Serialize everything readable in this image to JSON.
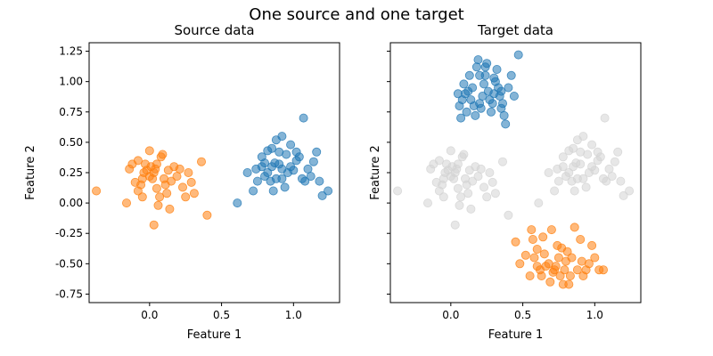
{
  "suptitle": "One source and one target",
  "colors": {
    "source_a": "#1f77b4",
    "source_b": "#ff7f0e",
    "target_ghost": "#d3d3d3"
  },
  "chart_data": [
    {
      "type": "scatter",
      "title": "Source data",
      "xlabel": "Feature 1",
      "ylabel": "Feature 2",
      "xlim": [
        -0.42,
        1.32
      ],
      "ylim": [
        -0.82,
        1.32
      ],
      "xticks": [
        "0.0",
        "0.5",
        "1.0"
      ],
      "yticks": [
        "-0.75",
        "-0.50",
        "-0.25",
        "0.00",
        "0.25",
        "0.50",
        "0.75",
        "1.00",
        "1.25"
      ],
      "grid": false,
      "series": [
        {
          "color": "#1f77b4",
          "points": [
            [
              0.61,
              0.0
            ],
            [
              0.72,
              0.1
            ],
            [
              0.75,
              0.18
            ],
            [
              0.68,
              0.25
            ],
            [
              0.74,
              0.28
            ],
            [
              0.78,
              0.3
            ],
            [
              0.8,
              0.22
            ],
            [
              0.82,
              0.25
            ],
            [
              0.84,
              0.18
            ],
            [
              0.86,
              0.1
            ],
            [
              0.88,
              0.2
            ],
            [
              0.85,
              0.3
            ],
            [
              0.87,
              0.33
            ],
            [
              0.9,
              0.32
            ],
            [
              0.92,
              0.2
            ],
            [
              0.94,
              0.13
            ],
            [
              0.96,
              0.25
            ],
            [
              0.98,
              0.3
            ],
            [
              1.0,
              0.27
            ],
            [
              1.02,
              0.35
            ],
            [
              1.04,
              0.38
            ],
            [
              1.06,
              0.2
            ],
            [
              1.08,
              0.18
            ],
            [
              1.1,
              0.28
            ],
            [
              1.12,
              0.22
            ],
            [
              1.14,
              0.34
            ],
            [
              1.16,
              0.42
            ],
            [
              1.18,
              0.18
            ],
            [
              1.2,
              0.06
            ],
            [
              1.24,
              0.1
            ],
            [
              0.78,
              0.38
            ],
            [
              0.82,
              0.43
            ],
            [
              0.85,
              0.45
            ],
            [
              0.9,
              0.42
            ],
            [
              0.95,
              0.4
            ],
            [
              0.88,
              0.52
            ],
            [
              0.92,
              0.55
            ],
            [
              0.98,
              0.48
            ],
            [
              1.02,
              0.42
            ],
            [
              1.07,
              0.7
            ],
            [
              0.8,
              0.33
            ],
            [
              0.92,
              0.28
            ]
          ]
        },
        {
          "color": "#ff7f0e",
          "points": [
            [
              -0.37,
              0.1
            ],
            [
              -0.16,
              0.0
            ],
            [
              -0.14,
              0.28
            ],
            [
              -0.12,
              0.32
            ],
            [
              -0.1,
              0.17
            ],
            [
              -0.08,
              0.1
            ],
            [
              -0.06,
              0.15
            ],
            [
              -0.05,
              0.05
            ],
            [
              -0.04,
              0.25
            ],
            [
              -0.03,
              0.32
            ],
            [
              -0.02,
              0.27
            ],
            [
              0.0,
              0.43
            ],
            [
              0.01,
              0.3
            ],
            [
              0.02,
              0.2
            ],
            [
              0.03,
              0.25
            ],
            [
              0.04,
              0.28
            ],
            [
              0.05,
              0.12
            ],
            [
              0.06,
              -0.02
            ],
            [
              0.07,
              0.05
            ],
            [
              0.08,
              0.38
            ],
            [
              0.09,
              0.4
            ],
            [
              0.1,
              0.2
            ],
            [
              0.11,
              0.15
            ],
            [
              0.12,
              0.08
            ],
            [
              0.13,
              0.27
            ],
            [
              0.14,
              -0.05
            ],
            [
              0.15,
              0.18
            ],
            [
              0.17,
              0.3
            ],
            [
              0.19,
              0.22
            ],
            [
              0.21,
              0.28
            ],
            [
              0.23,
              0.13
            ],
            [
              0.25,
              0.05
            ],
            [
              0.27,
              0.25
            ],
            [
              0.29,
              0.17
            ],
            [
              0.31,
              0.08
            ],
            [
              0.36,
              0.34
            ],
            [
              0.4,
              -0.1
            ],
            [
              -0.05,
              0.2
            ],
            [
              0.03,
              -0.18
            ],
            [
              0.05,
              0.32
            ],
            [
              -0.08,
              0.35
            ],
            [
              0.0,
              0.22
            ]
          ]
        }
      ]
    },
    {
      "type": "scatter",
      "title": "Target data",
      "xlabel": "Feature 1",
      "ylabel": "Feature 2",
      "xlim": [
        -0.42,
        1.32
      ],
      "ylim": [
        -0.82,
        1.32
      ],
      "xticks": [
        "0.0",
        "0.5",
        "1.0"
      ],
      "grid": false,
      "series": [
        {
          "color": "#d3d3d3",
          "points": [
            [
              -0.37,
              0.1
            ],
            [
              -0.16,
              0.0
            ],
            [
              -0.14,
              0.28
            ],
            [
              -0.12,
              0.32
            ],
            [
              -0.1,
              0.17
            ],
            [
              -0.08,
              0.1
            ],
            [
              -0.06,
              0.15
            ],
            [
              -0.05,
              0.05
            ],
            [
              -0.04,
              0.25
            ],
            [
              -0.03,
              0.32
            ],
            [
              -0.02,
              0.27
            ],
            [
              0.0,
              0.43
            ],
            [
              0.01,
              0.3
            ],
            [
              0.02,
              0.2
            ],
            [
              0.03,
              0.25
            ],
            [
              0.04,
              0.28
            ],
            [
              0.05,
              0.12
            ],
            [
              0.06,
              -0.02
            ],
            [
              0.07,
              0.05
            ],
            [
              0.08,
              0.38
            ],
            [
              0.09,
              0.4
            ],
            [
              0.1,
              0.2
            ],
            [
              0.11,
              0.15
            ],
            [
              0.12,
              0.08
            ],
            [
              0.13,
              0.27
            ],
            [
              0.14,
              -0.05
            ],
            [
              0.15,
              0.18
            ],
            [
              0.17,
              0.3
            ],
            [
              0.19,
              0.22
            ],
            [
              0.21,
              0.28
            ],
            [
              0.23,
              0.13
            ],
            [
              0.25,
              0.05
            ],
            [
              0.27,
              0.25
            ],
            [
              0.29,
              0.17
            ],
            [
              0.31,
              0.08
            ],
            [
              0.36,
              0.34
            ],
            [
              0.4,
              -0.1
            ],
            [
              -0.05,
              0.2
            ],
            [
              0.03,
              -0.18
            ],
            [
              0.05,
              0.32
            ],
            [
              -0.08,
              0.35
            ],
            [
              0.0,
              0.22
            ],
            [
              0.61,
              0.0
            ],
            [
              0.72,
              0.1
            ],
            [
              0.75,
              0.18
            ],
            [
              0.68,
              0.25
            ],
            [
              0.74,
              0.28
            ],
            [
              0.78,
              0.3
            ],
            [
              0.8,
              0.22
            ],
            [
              0.82,
              0.25
            ],
            [
              0.84,
              0.18
            ],
            [
              0.86,
              0.1
            ],
            [
              0.88,
              0.2
            ],
            [
              0.85,
              0.3
            ],
            [
              0.87,
              0.33
            ],
            [
              0.9,
              0.32
            ],
            [
              0.92,
              0.2
            ],
            [
              0.94,
              0.13
            ],
            [
              0.96,
              0.25
            ],
            [
              0.98,
              0.3
            ],
            [
              1.0,
              0.27
            ],
            [
              1.02,
              0.35
            ],
            [
              1.04,
              0.38
            ],
            [
              1.06,
              0.2
            ],
            [
              1.08,
              0.18
            ],
            [
              1.1,
              0.28
            ],
            [
              1.12,
              0.22
            ],
            [
              1.14,
              0.34
            ],
            [
              1.16,
              0.42
            ],
            [
              1.18,
              0.18
            ],
            [
              1.2,
              0.06
            ],
            [
              1.24,
              0.1
            ],
            [
              0.78,
              0.38
            ],
            [
              0.82,
              0.43
            ],
            [
              0.85,
              0.45
            ],
            [
              0.9,
              0.42
            ],
            [
              0.95,
              0.4
            ],
            [
              0.88,
              0.52
            ],
            [
              0.92,
              0.55
            ],
            [
              0.98,
              0.48
            ],
            [
              1.02,
              0.42
            ],
            [
              1.07,
              0.7
            ]
          ]
        },
        {
          "color": "#1f77b4",
          "points": [
            [
              0.05,
              0.9
            ],
            [
              0.06,
              0.8
            ],
            [
              0.07,
              0.7
            ],
            [
              0.08,
              0.85
            ],
            [
              0.09,
              0.98
            ],
            [
              0.1,
              0.9
            ],
            [
              0.11,
              0.75
            ],
            [
              0.12,
              0.92
            ],
            [
              0.13,
              1.05
            ],
            [
              0.14,
              0.85
            ],
            [
              0.15,
              0.95
            ],
            [
              0.16,
              0.8
            ],
            [
              0.17,
              0.72
            ],
            [
              0.18,
              1.12
            ],
            [
              0.19,
              1.18
            ],
            [
              0.2,
              0.82
            ],
            [
              0.21,
              0.78
            ],
            [
              0.22,
              0.88
            ],
            [
              0.23,
              0.98
            ],
            [
              0.24,
              1.05
            ],
            [
              0.25,
              1.15
            ],
            [
              0.26,
              0.92
            ],
            [
              0.27,
              0.85
            ],
            [
              0.28,
              0.75
            ],
            [
              0.29,
              0.82
            ],
            [
              0.3,
              0.9
            ],
            [
              0.31,
              1.0
            ],
            [
              0.32,
              1.1
            ],
            [
              0.33,
              0.95
            ],
            [
              0.34,
              0.88
            ],
            [
              0.35,
              0.78
            ],
            [
              0.36,
              0.82
            ],
            [
              0.37,
              0.72
            ],
            [
              0.38,
              0.65
            ],
            [
              0.4,
              0.95
            ],
            [
              0.42,
              1.05
            ],
            [
              0.44,
              0.88
            ],
            [
              0.47,
              1.22
            ],
            [
              0.2,
              1.05
            ],
            [
              0.24,
              1.12
            ],
            [
              0.3,
              1.03
            ],
            [
              0.35,
              0.92
            ]
          ]
        },
        {
          "color": "#ff7f0e",
          "points": [
            [
              0.45,
              -0.32
            ],
            [
              0.48,
              -0.5
            ],
            [
              0.52,
              -0.43
            ],
            [
              0.55,
              -0.6
            ],
            [
              0.56,
              -0.22
            ],
            [
              0.57,
              -0.3
            ],
            [
              0.58,
              -0.45
            ],
            [
              0.6,
              -0.38
            ],
            [
              0.62,
              -0.55
            ],
            [
              0.63,
              -0.6
            ],
            [
              0.64,
              -0.28
            ],
            [
              0.65,
              -0.42
            ],
            [
              0.66,
              -0.52
            ],
            [
              0.68,
              -0.5
            ],
            [
              0.69,
              -0.65
            ],
            [
              0.7,
              -0.22
            ],
            [
              0.71,
              -0.57
            ],
            [
              0.72,
              -0.55
            ],
            [
              0.73,
              -0.52
            ],
            [
              0.74,
              -0.35
            ],
            [
              0.75,
              -0.45
            ],
            [
              0.76,
              -0.6
            ],
            [
              0.77,
              -0.37
            ],
            [
              0.78,
              -0.67
            ],
            [
              0.79,
              -0.55
            ],
            [
              0.8,
              -0.48
            ],
            [
              0.81,
              -0.4
            ],
            [
              0.82,
              -0.67
            ],
            [
              0.83,
              -0.6
            ],
            [
              0.84,
              -0.45
            ],
            [
              0.86,
              -0.2
            ],
            [
              0.88,
              -0.55
            ],
            [
              0.9,
              -0.3
            ],
            [
              0.91,
              -0.48
            ],
            [
              0.92,
              -0.6
            ],
            [
              0.94,
              -0.55
            ],
            [
              0.96,
              -0.5
            ],
            [
              0.98,
              -0.35
            ],
            [
              1.0,
              -0.45
            ],
            [
              1.03,
              -0.55
            ],
            [
              1.06,
              -0.55
            ],
            [
              0.6,
              -0.52
            ]
          ]
        }
      ]
    }
  ]
}
